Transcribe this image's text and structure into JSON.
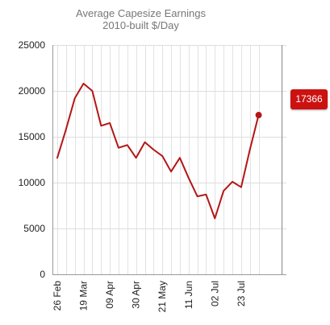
{
  "chart_data": {
    "type": "line",
    "title": "Average Capesize Earnings",
    "subtitle": "2010-built $/Day",
    "xlabel": "",
    "ylabel": "",
    "ylim": [
      0,
      25000
    ],
    "yticks": [
      0,
      5000,
      10000,
      15000,
      20000,
      25000
    ],
    "grid": true,
    "legend": "none",
    "x_labels": [
      "26 Feb",
      "19 Mar",
      "09 Apr",
      "30 Apr",
      "21 May",
      "11 Jun",
      "02 Jul",
      "23 Jul"
    ],
    "x_label_index": [
      0,
      3,
      6,
      9,
      12,
      15,
      18,
      21
    ],
    "series": [
      {
        "name": "",
        "color": "#b41616",
        "values": [
          12700,
          15800,
          19200,
          20800,
          20000,
          16200,
          16500,
          13800,
          14100,
          12700,
          14400,
          13600,
          12900,
          11200,
          12700,
          10500,
          8500,
          8700,
          6100,
          9100,
          10100,
          9500,
          13600,
          17366
        ]
      }
    ],
    "last_value_label": "17366",
    "last_value_color": "#cc1111"
  }
}
